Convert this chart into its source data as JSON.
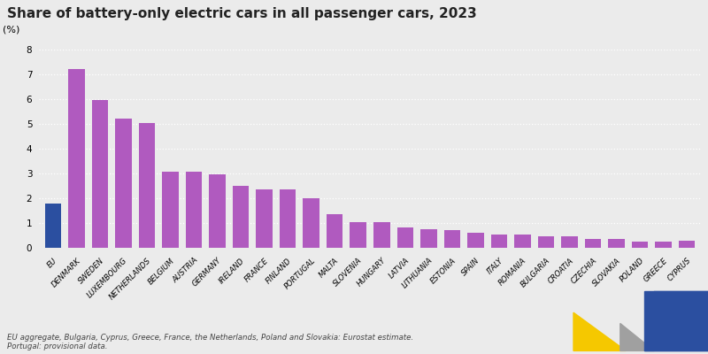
{
  "title": "Share of battery-only electric cars in all passenger cars, 2023",
  "ylabel": "(%)",
  "categories": [
    "EU",
    "DENMARK",
    "SWEDEN",
    "LUXEMBOURG",
    "NETHERLANDS",
    "BELGIUM",
    "AUSTRIA",
    "GERMANY",
    "IRELAND",
    "FRANCE",
    "FINLAND",
    "PORTUGAL",
    "MALTA",
    "SLOVENIA",
    "HUNGARY",
    "LATVIA",
    "LITHUANIA",
    "ESTONIA",
    "SPAIN",
    "ITALY",
    "ROMANIA",
    "BULGARIA",
    "CROATIA",
    "CZECHIA",
    "SLOVAKIA",
    "POLAND",
    "GREECE",
    "CYPRUS"
  ],
  "values": [
    1.8,
    7.2,
    5.98,
    5.2,
    5.05,
    3.07,
    3.07,
    2.98,
    2.5,
    2.37,
    2.37,
    2.0,
    1.37,
    1.05,
    1.05,
    0.82,
    0.75,
    0.73,
    0.62,
    0.53,
    0.52,
    0.45,
    0.45,
    0.35,
    0.35,
    0.25,
    0.25,
    0.27
  ],
  "bar_color_eu": "#2b4fa0",
  "bar_color_default": "#b05abf",
  "ylim": [
    0,
    8
  ],
  "yticks": [
    0,
    1,
    2,
    3,
    4,
    5,
    6,
    7,
    8
  ],
  "background_color": "#ebebeb",
  "grid_color": "#ffffff",
  "footnote": "EU aggregate, Bulgaria, Cyprus, Greece, France, the Netherlands, Poland and Slovakia: Eurostat estimate.\nPortugal: provisional data.",
  "title_fontsize": 11,
  "label_fontsize": 6.0,
  "ylabel_fontsize": 8
}
